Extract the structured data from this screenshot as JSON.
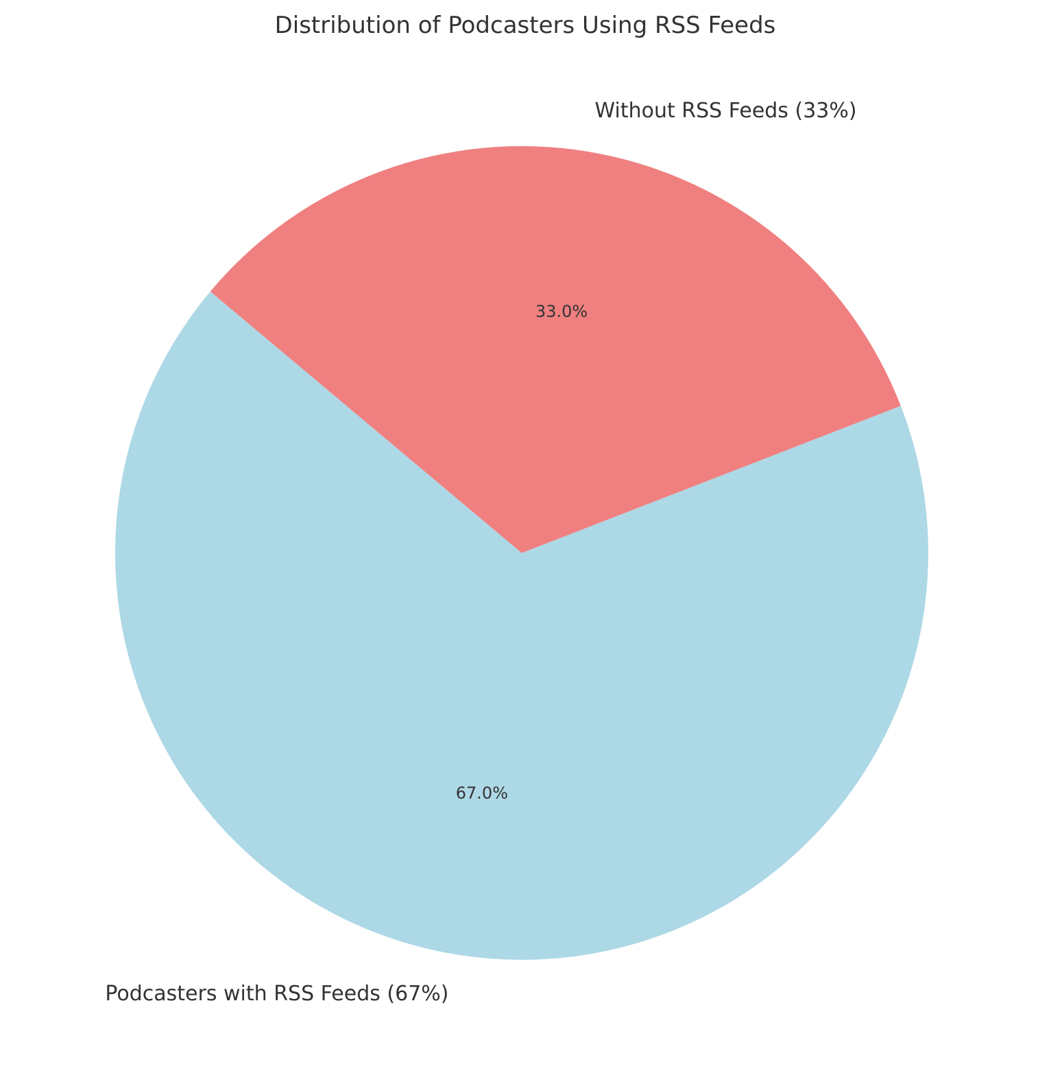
{
  "chart_data": {
    "type": "pie",
    "title": "Distribution of Podcasters Using RSS Feeds",
    "slices": [
      {
        "label": "Podcasters with RSS Feeds (67%)",
        "value": 67,
        "pct_label": "67.0%",
        "color": "#add8e6"
      },
      {
        "label": "Without RSS Feeds (33%)",
        "value": 33,
        "pct_label": "33.0%",
        "color": "#f08080"
      }
    ],
    "start_angle_deg": 140,
    "direction": "counterclockwise",
    "legend": "none"
  }
}
